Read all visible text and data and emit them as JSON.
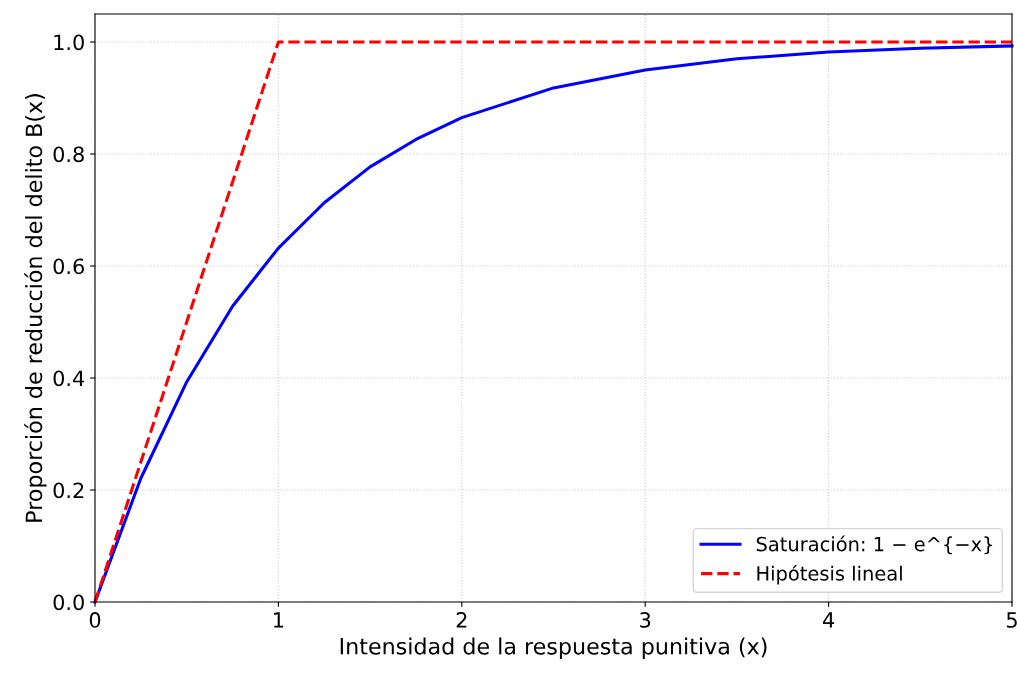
{
  "chart_data": {
    "type": "line",
    "xlabel": "Intensidad de la respuesta punitiva (x)",
    "ylabel": "Proporción de reducción del delito B(x)",
    "series": [
      {
        "name": "Saturación: 1 − e^{−x}",
        "color": "#0000ff",
        "line_style": "solid",
        "x": [
          0,
          0.25,
          0.5,
          0.75,
          1,
          1.25,
          1.5,
          1.75,
          2,
          2.5,
          3,
          3.5,
          4,
          4.5,
          5
        ],
        "values": [
          0,
          0.221,
          0.393,
          0.528,
          0.632,
          0.713,
          0.777,
          0.826,
          0.865,
          0.918,
          0.95,
          0.97,
          0.982,
          0.989,
          0.993
        ]
      },
      {
        "name": "Hipótesis lineal",
        "color": "#ff0000",
        "line_style": "dashed",
        "x": [
          0,
          1,
          5
        ],
        "values": [
          0,
          1,
          1
        ]
      }
    ],
    "xlim": [
      0,
      5
    ],
    "xticks": [
      0,
      1,
      2,
      3,
      4,
      5
    ],
    "ylim": [
      0,
      1.05
    ],
    "yticks": [
      {
        "value": 0,
        "label": "0.0"
      },
      {
        "value": 0.2,
        "label": "0.2"
      },
      {
        "value": 0.4,
        "label": "0.4"
      },
      {
        "value": 0.6,
        "label": "0.6"
      },
      {
        "value": 0.8,
        "label": "0.8"
      },
      {
        "value": 1.0,
        "label": "1.0"
      }
    ],
    "grid": true,
    "legend": "bottom right",
    "marker": "none"
  }
}
